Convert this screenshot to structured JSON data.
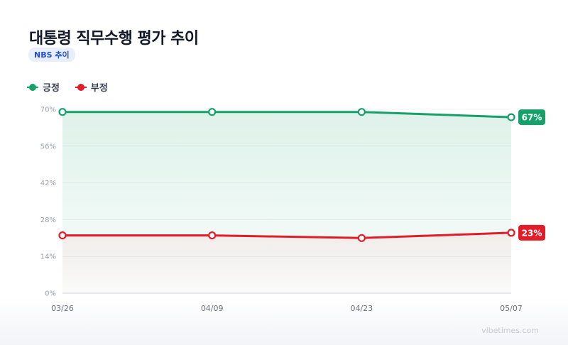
{
  "title": "대통령 직무수행 평가 추이",
  "badge": "NBS 추이",
  "footer": "vibetimes.com",
  "chart_data": {
    "type": "line",
    "x": [
      "03/26",
      "04/09",
      "04/23",
      "05/07"
    ],
    "yticks": [
      "0%",
      "14%",
      "28%",
      "42%",
      "56%",
      "70%"
    ],
    "ylim": [
      0,
      70
    ],
    "grid": true,
    "legend_position": "top-left",
    "series": [
      {
        "name": "긍정",
        "values": [
          69,
          69,
          69,
          67
        ],
        "color": "#16a06a",
        "end_label": "67%"
      },
      {
        "name": "부정",
        "values": [
          22,
          22,
          21,
          23
        ],
        "color": "#e11d2a",
        "end_label": "23%"
      }
    ]
  }
}
